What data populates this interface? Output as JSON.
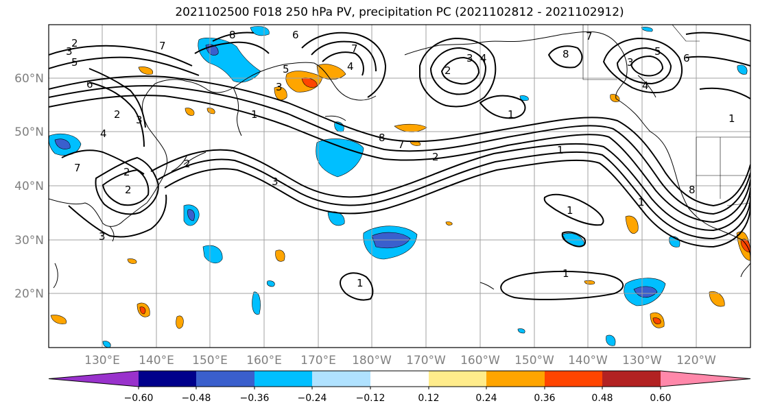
{
  "title": "2021102500 F018 250 hPa PV, precipitation PC (2021102812 - 2021102912)",
  "lat_labels": [
    "60°N",
    "50°N",
    "40°N",
    "30°N",
    "20°N"
  ],
  "lon_labels": [
    "130°E",
    "140°E",
    "150°E",
    "160°E",
    "170°E",
    "180°W",
    "170°W",
    "160°W",
    "150°W",
    "140°W",
    "130°W",
    "120°W"
  ],
  "colorbar": {
    "colors": [
      "#9932cc",
      "#00008b",
      "#3a5fcd",
      "#00bfff",
      "#b0e2ff",
      "#ffffff",
      "#ffec8b",
      "#ffa500",
      "#ff4500",
      "#b22222",
      "#ff88aa"
    ],
    "tick_labels": [
      "−0.60",
      "−0.48",
      "−0.36",
      "−0.24",
      "−0.12",
      "0.12",
      "0.24",
      "0.36",
      "0.48",
      "0.60"
    ]
  },
  "contour_labels": [
    "2",
    "3",
    "5",
    "6",
    "7",
    "8",
    "6",
    "5",
    "3",
    "4",
    "7",
    "1",
    "2",
    "3",
    "4",
    "2",
    "7",
    "8",
    "3",
    "2",
    "1",
    "2",
    "5",
    "3",
    "4",
    "6",
    "7",
    "8",
    "1",
    "1",
    "1",
    "1",
    "1",
    "3",
    "4",
    "2",
    "8",
    "7",
    "3",
    "2",
    "1"
  ]
}
